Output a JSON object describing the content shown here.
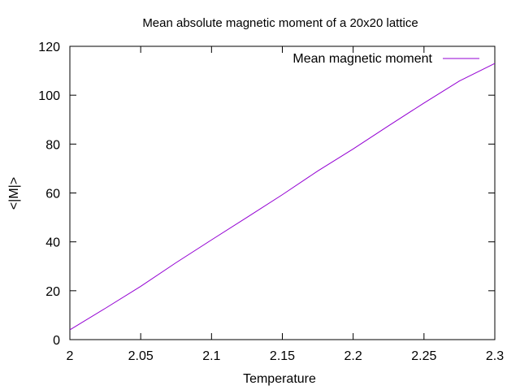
{
  "chart_data": {
    "type": "line",
    "title": "Mean absolute magnetic moment of a 20x20 lattice",
    "xlabel": "Temperature",
    "ylabel": "<|M|>",
    "xlim": [
      2,
      2.3
    ],
    "ylim": [
      0,
      120
    ],
    "xticks": [
      2,
      2.05,
      2.1,
      2.15,
      2.2,
      2.25,
      2.3
    ],
    "xtick_labels": [
      "2",
      "2.05",
      "2.1",
      "2.15",
      "2.2",
      "2.25",
      "2.3"
    ],
    "yticks": [
      0,
      20,
      40,
      60,
      80,
      100,
      120
    ],
    "ytick_labels": [
      "0",
      "20",
      "40",
      "60",
      "80",
      "100",
      "120"
    ],
    "grid": false,
    "legend_position": "top-right",
    "series": [
      {
        "name": "Mean magnetic moment",
        "color": "#9400d3",
        "x": [
          2.0,
          2.025,
          2.05,
          2.075,
          2.1,
          2.125,
          2.15,
          2.175,
          2.2,
          2.225,
          2.25,
          2.275,
          2.3
        ],
        "y": [
          4,
          12.8,
          21.8,
          31.5,
          40.8,
          50.0,
          59.3,
          69.0,
          78.0,
          87.5,
          96.8,
          105.8,
          113
        ]
      }
    ]
  }
}
